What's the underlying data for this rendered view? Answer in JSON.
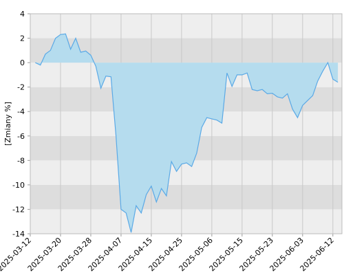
{
  "chart_data": {
    "type": "area",
    "y_label": "[Zmiany %]",
    "categories": [
      "2025-03-12",
      null,
      null,
      null,
      null,
      null,
      "2025-03-20",
      null,
      null,
      null,
      null,
      null,
      "2025-03-28",
      null,
      null,
      null,
      null,
      null,
      "2025-04-07",
      null,
      null,
      null,
      null,
      null,
      "2025-04-15",
      null,
      null,
      null,
      null,
      null,
      "2025-04-25",
      null,
      null,
      null,
      null,
      null,
      "2025-05-06",
      null,
      null,
      null,
      null,
      null,
      "2025-05-15",
      null,
      null,
      null,
      null,
      null,
      "2025-05-23",
      null,
      null,
      null,
      null,
      null,
      "2025-06-03",
      null,
      null,
      null,
      null,
      null,
      "2025-06-12",
      null
    ],
    "values": [
      null,
      0.0,
      -0.2,
      0.7,
      1.0,
      2.0,
      2.3,
      2.35,
      1.1,
      2.0,
      0.85,
      0.95,
      0.6,
      -0.3,
      -2.1,
      -1.1,
      -1.15,
      -6.0,
      -12.0,
      -12.3,
      -13.9,
      -11.7,
      -12.3,
      -10.8,
      -10.1,
      -11.4,
      -10.3,
      -10.9,
      -8.1,
      -8.9,
      -8.3,
      -8.2,
      -8.5,
      -7.4,
      -5.3,
      -4.5,
      -4.6,
      -4.7,
      -4.95,
      -0.85,
      -1.95,
      -1.0,
      -1.0,
      -0.85,
      -2.2,
      -2.3,
      -2.2,
      -2.55,
      -2.5,
      -2.8,
      -2.9,
      -2.55,
      -3.8,
      -4.5,
      -3.5,
      -3.1,
      -2.7,
      -1.5,
      -0.7,
      0.0,
      -1.35,
      -1.6
    ],
    "color": "#5aa9e6",
    "fill": "#b5dcee",
    "ylim": [
      -14,
      4
    ],
    "yticks": [
      4,
      2,
      0,
      -2,
      -4,
      -6,
      -8,
      -10,
      -12,
      -14
    ],
    "band_colors": [
      "#eeeeee",
      "#dddddd"
    ]
  }
}
